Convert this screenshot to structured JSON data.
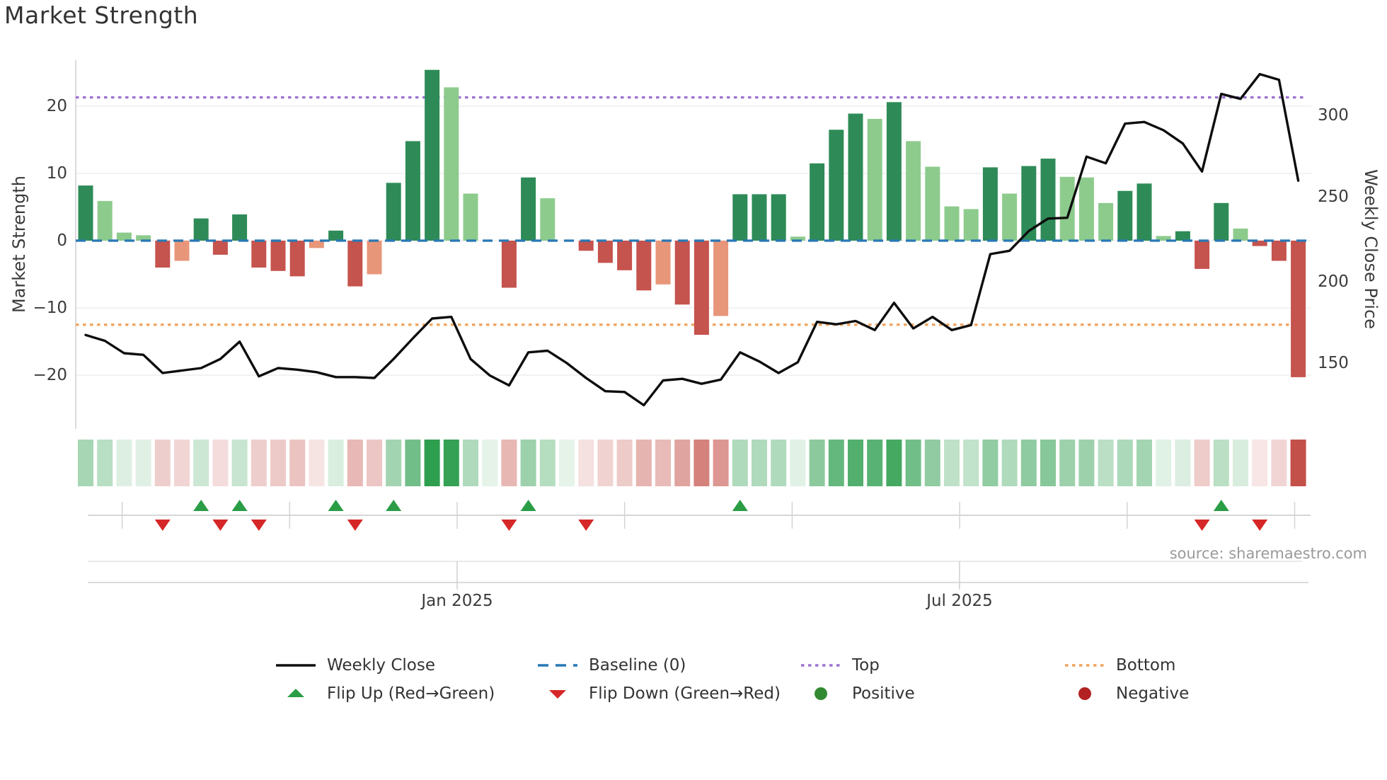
{
  "title": "Market Strength",
  "source": "source: sharemaestro.com",
  "axes": {
    "left": {
      "label": "Market Strength",
      "tick_labels": [
        "20",
        "10",
        "0",
        "−10",
        "−20"
      ]
    },
    "right": {
      "label": "Weekly Close Price",
      "tick_labels": [
        "300",
        "250",
        "200",
        "150"
      ]
    },
    "x": {
      "tick_labels": [
        "Jan 2025",
        "Jul 2025"
      ]
    }
  },
  "legend": {
    "items": [
      {
        "label": "Weekly Close",
        "swatch": "black-line"
      },
      {
        "label": "Baseline (0)",
        "swatch": "blue-dashed-line"
      },
      {
        "label": "Top",
        "swatch": "purple-dotted-line"
      },
      {
        "label": "Bottom",
        "swatch": "orange-dotted-line"
      },
      {
        "label": "Flip Up (Red→Green)",
        "swatch": "green-up-triangle"
      },
      {
        "label": "Flip Down (Green→Red)",
        "swatch": "red-down-triangle"
      },
      {
        "label": "Positive",
        "swatch": "green-circle"
      },
      {
        "label": "Negative",
        "swatch": "dark-red-circle"
      }
    ]
  },
  "colors": {
    "bar": {
      "dg": "#2e8b57",
      "lg": "#8dcb8d",
      "dr": "#c5534e",
      "sa": "#e8967a"
    },
    "heat_green": "#2e9e4f",
    "heat_red": "#c0443c",
    "baseline": "#2878b5",
    "top": "#9b72d0",
    "bottom": "#f0a35e",
    "weekly_close": "#0d0d0d",
    "flip_up": "#2a9d46",
    "flip_down": "#d62728",
    "positive": "#318a31",
    "negative": "#b22222",
    "grid": "#ebebef",
    "spine": "#cfcfd4",
    "text": "#3b3b3b"
  },
  "chart_data": {
    "type": "combo",
    "title": "Market Strength",
    "weeks": 64,
    "x_ticks": [
      {
        "label": "Jan 2025",
        "week": 20.3
      },
      {
        "label": "Jul 2025",
        "week": 46.4
      }
    ],
    "left_axis": {
      "label": "Market Strength",
      "ticks": [
        20,
        10,
        0,
        -10,
        -20
      ],
      "baseline": 0,
      "top_line": 21.3,
      "bottom_line": -12.5,
      "ylim": [
        -27,
        27
      ]
    },
    "right_axis": {
      "label": "Weekly Close Price",
      "ticks": [
        300,
        250,
        200,
        150
      ],
      "ylim": [
        135,
        340
      ]
    },
    "bars": {
      "name": "Market Strength (weekly)",
      "values": [
        8.2,
        5.9,
        1.2,
        0.8,
        -4.0,
        -3.0,
        3.3,
        -2.1,
        3.9,
        -4.0,
        -4.5,
        -5.3,
        -1.1,
        1.5,
        -6.8,
        -5.0,
        8.6,
        14.8,
        25.4,
        22.8,
        7.0,
        0.15,
        -7.0,
        9.4,
        6.3,
        0.15,
        -1.5,
        -3.3,
        -4.4,
        -7.4,
        -6.5,
        -9.5,
        -14.0,
        -11.2,
        6.9,
        6.9,
        6.9,
        0.6,
        11.5,
        16.5,
        18.9,
        18.1,
        20.6,
        14.8,
        11.0,
        5.1,
        4.7,
        10.9,
        7.0,
        11.1,
        12.2,
        9.5,
        9.4,
        5.6,
        7.4,
        8.5,
        0.7,
        1.4,
        -4.2,
        5.6,
        1.8,
        -0.8,
        -3.0,
        -20.3
      ],
      "color_class": [
        "dg",
        "lg",
        "lg",
        "lg",
        "dr",
        "sa",
        "dg",
        "dr",
        "dg",
        "dr",
        "dr",
        "dr",
        "sa",
        "dg",
        "dr",
        "sa",
        "dg",
        "dg",
        "dg",
        "lg",
        "lg",
        "lg",
        "dr",
        "dg",
        "lg",
        "lg",
        "dr",
        "dr",
        "dr",
        "dr",
        "sa",
        "dr",
        "dr",
        "sa",
        "dg",
        "dg",
        "dg",
        "lg",
        "dg",
        "dg",
        "dg",
        "lg",
        "dg",
        "lg",
        "lg",
        "lg",
        "lg",
        "dg",
        "lg",
        "dg",
        "dg",
        "lg",
        "lg",
        "lg",
        "dg",
        "dg",
        "lg",
        "dg",
        "dr",
        "dg",
        "lg",
        "dr",
        "dr",
        "dr"
      ]
    },
    "weekly_close": {
      "name": "Weekly Close",
      "values": [
        167,
        163.5,
        156,
        155,
        144,
        145.5,
        147,
        152.5,
        163,
        142,
        147,
        146,
        144.5,
        141.5,
        141.5,
        141,
        152.5,
        165,
        177,
        178,
        152.5,
        142.5,
        136.5,
        156.5,
        157.5,
        150,
        141,
        133,
        132.5,
        124.5,
        139.5,
        140.5,
        137.5,
        140,
        156.5,
        151,
        144,
        150.5,
        175,
        173.5,
        175.5,
        170,
        186.5,
        171,
        178,
        170,
        173,
        216,
        218,
        230,
        237.5,
        238,
        275,
        271,
        295,
        296,
        291,
        283,
        266,
        313,
        310,
        325,
        321.5,
        260.5
      ]
    },
    "flip_up_weeks": [
      7,
      9,
      14,
      17,
      24,
      35,
      60
    ],
    "flip_down_weeks": [
      5,
      8,
      10,
      15,
      23,
      27,
      59,
      62
    ],
    "heat_strip": {
      "note": "one cell per week, tint scales with bar value",
      "source_series": "bars.values"
    },
    "legend_position": "bottom",
    "grid": true
  }
}
